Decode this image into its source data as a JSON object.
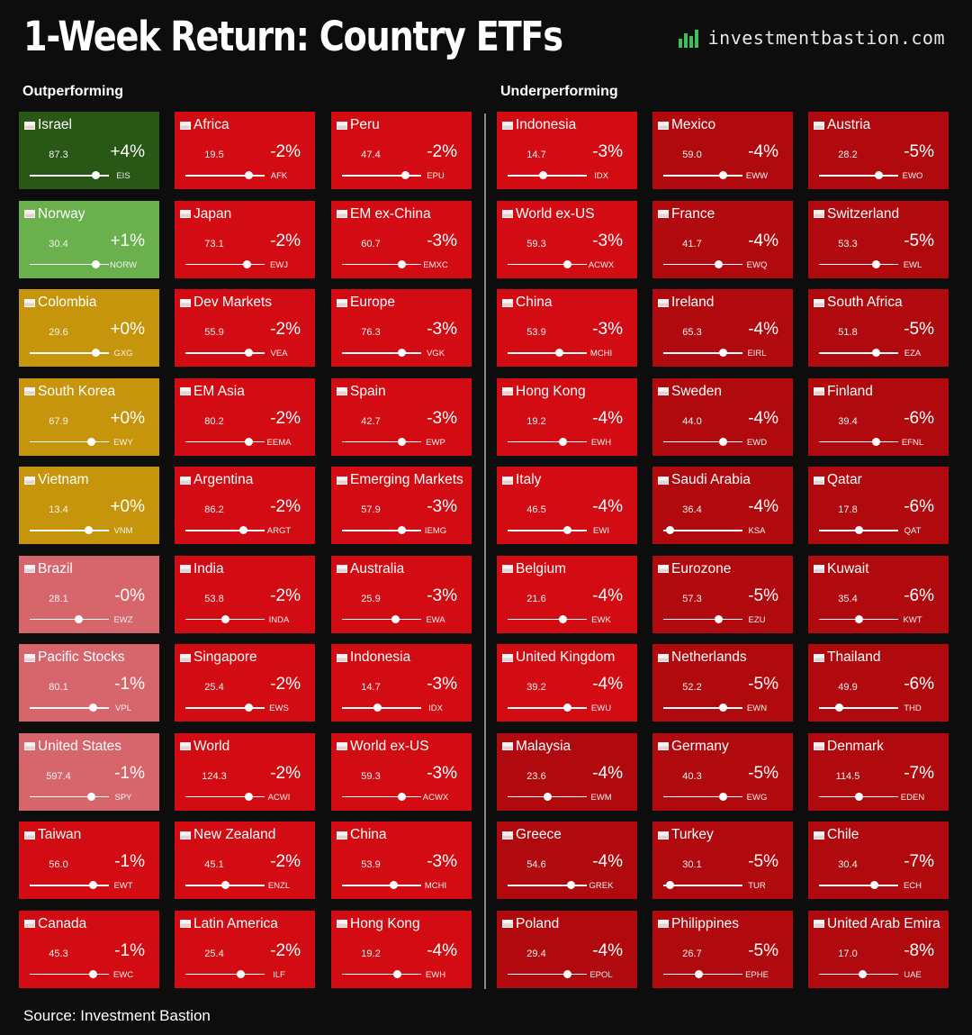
{
  "title": "1-Week Return: Country ETFs",
  "brand": {
    "logo_icon": "bar-chart-logo-icon",
    "text": "investmentbastion.com"
  },
  "labels": {
    "outperforming": "Outperforming",
    "underperforming": "Underperforming"
  },
  "source": "Source: Investment Bastion",
  "colors": {
    "dark_green": "#285716",
    "light_green": "#6ab04c",
    "gold": "#c6950c",
    "light_red": "#d7666c",
    "medium_red": "#d20c12",
    "dark_red": "#b00a0e"
  },
  "chart_data": {
    "type": "heatmap",
    "title": "1-Week Return: Country ETFs",
    "fields": [
      "name",
      "price",
      "return",
      "ticker",
      "slider_position"
    ],
    "columns": [
      {
        "group": "Outperforming",
        "tiles": [
          {
            "name": "Israel",
            "price": "87.3",
            "ret": "+4%",
            "ticker": "EIS",
            "pos": 0.83,
            "color": "#285716"
          },
          {
            "name": "Norway",
            "price": "30.4",
            "ret": "+1%",
            "ticker": "NORW",
            "pos": 0.83,
            "color": "#6ab04c"
          },
          {
            "name": "Colombia",
            "price": "29.6",
            "ret": "+0%",
            "ticker": "GXG",
            "pos": 0.83,
            "color": "#c6950c"
          },
          {
            "name": "South Korea",
            "price": "67.9",
            "ret": "+0%",
            "ticker": "EWY",
            "pos": 0.78,
            "color": "#c6950c"
          },
          {
            "name": "Vietnam",
            "price": "13.4",
            "ret": "+0%",
            "ticker": "VNM",
            "pos": 0.74,
            "color": "#c6950c"
          },
          {
            "name": "Brazil",
            "price": "28.1",
            "ret": "-0%",
            "ticker": "EWZ",
            "pos": 0.62,
            "color": "#d7666c"
          },
          {
            "name": "Pacific Stocks",
            "price": "80.1",
            "ret": "-1%",
            "ticker": "VPL",
            "pos": 0.8,
            "color": "#d7666c"
          },
          {
            "name": "United States",
            "price": "597.4",
            "ret": "-1%",
            "ticker": "SPY",
            "pos": 0.78,
            "color": "#d7666c"
          },
          {
            "name": "Taiwan",
            "price": "56.0",
            "ret": "-1%",
            "ticker": "EWT",
            "pos": 0.8,
            "color": "#d20c12"
          },
          {
            "name": "Canada",
            "price": "45.3",
            "ret": "-1%",
            "ticker": "EWC",
            "pos": 0.8,
            "color": "#d20c12"
          }
        ]
      },
      {
        "group": "Outperforming",
        "tiles": [
          {
            "name": "Africa",
            "price": "19.5",
            "ret": "-2%",
            "ticker": "AFK",
            "pos": 0.8,
            "color": "#d20c12"
          },
          {
            "name": "Japan",
            "price": "73.1",
            "ret": "-2%",
            "ticker": "EWJ",
            "pos": 0.78,
            "color": "#d20c12"
          },
          {
            "name": "Dev Markets",
            "price": "55.9",
            "ret": "-2%",
            "ticker": "VEA",
            "pos": 0.8,
            "color": "#d20c12"
          },
          {
            "name": "EM Asia",
            "price": "80.2",
            "ret": "-2%",
            "ticker": "EEMA",
            "pos": 0.8,
            "color": "#d20c12"
          },
          {
            "name": "Argentina",
            "price": "86.2",
            "ret": "-2%",
            "ticker": "ARGT",
            "pos": 0.73,
            "color": "#d20c12"
          },
          {
            "name": "India",
            "price": "53.8",
            "ret": "-2%",
            "ticker": "INDA",
            "pos": 0.51,
            "color": "#d20c12"
          },
          {
            "name": "Singapore",
            "price": "25.4",
            "ret": "-2%",
            "ticker": "EWS",
            "pos": 0.8,
            "color": "#d20c12"
          },
          {
            "name": "World",
            "price": "124.3",
            "ret": "-2%",
            "ticker": "ACWI",
            "pos": 0.8,
            "color": "#d20c12"
          },
          {
            "name": "New Zealand",
            "price": "45.1",
            "ret": "-2%",
            "ticker": "ENZL",
            "pos": 0.5,
            "color": "#d20c12"
          },
          {
            "name": "Latin America",
            "price": "25.4",
            "ret": "-2%",
            "ticker": "ILF",
            "pos": 0.7,
            "color": "#d20c12"
          }
        ]
      },
      {
        "group": "Outperforming",
        "tiles": [
          {
            "name": "Peru",
            "price": "47.4",
            "ret": "-2%",
            "ticker": "EPU",
            "pos": 0.8,
            "color": "#d20c12"
          },
          {
            "name": "EM ex-China",
            "price": "60.7",
            "ret": "-3%",
            "ticker": "EMXC",
            "pos": 0.75,
            "color": "#d20c12"
          },
          {
            "name": "Europe",
            "price": "76.3",
            "ret": "-3%",
            "ticker": "VGK",
            "pos": 0.75,
            "color": "#d20c12"
          },
          {
            "name": "Spain",
            "price": "42.7",
            "ret": "-3%",
            "ticker": "EWP",
            "pos": 0.75,
            "color": "#d20c12"
          },
          {
            "name": "Emerging Markets",
            "price": "57.9",
            "ret": "-3%",
            "ticker": "IEMG",
            "pos": 0.75,
            "color": "#d20c12"
          },
          {
            "name": "Australia",
            "price": "25.9",
            "ret": "-3%",
            "ticker": "EWA",
            "pos": 0.68,
            "color": "#d20c12"
          },
          {
            "name": "Indonesia",
            "price": "14.7",
            "ret": "-3%",
            "ticker": "IDX",
            "pos": 0.45,
            "color": "#d20c12"
          },
          {
            "name": "World ex-US",
            "price": "59.3",
            "ret": "-3%",
            "ticker": "ACWX",
            "pos": 0.75,
            "color": "#d20c12"
          },
          {
            "name": "China",
            "price": "53.9",
            "ret": "-3%",
            "ticker": "MCHI",
            "pos": 0.65,
            "color": "#d20c12"
          },
          {
            "name": "Hong Kong",
            "price": "19.2",
            "ret": "-4%",
            "ticker": "EWH",
            "pos": 0.7,
            "color": "#d20c12"
          }
        ]
      },
      {
        "group": "Underperforming",
        "tiles": [
          {
            "name": "Indonesia",
            "price": "14.7",
            "ret": "-3%",
            "ticker": "IDX",
            "pos": 0.45,
            "color": "#d20c12"
          },
          {
            "name": "World ex-US",
            "price": "59.3",
            "ret": "-3%",
            "ticker": "ACWX",
            "pos": 0.75,
            "color": "#d20c12"
          },
          {
            "name": "China",
            "price": "53.9",
            "ret": "-3%",
            "ticker": "MCHI",
            "pos": 0.65,
            "color": "#d20c12"
          },
          {
            "name": "Hong Kong",
            "price": "19.2",
            "ret": "-4%",
            "ticker": "EWH",
            "pos": 0.7,
            "color": "#d20c12"
          },
          {
            "name": "Italy",
            "price": "46.5",
            "ret": "-4%",
            "ticker": "EWI",
            "pos": 0.75,
            "color": "#d20c12"
          },
          {
            "name": "Belgium",
            "price": "21.6",
            "ret": "-4%",
            "ticker": "EWK",
            "pos": 0.7,
            "color": "#d20c12"
          },
          {
            "name": "United Kingdom",
            "price": "39.2",
            "ret": "-4%",
            "ticker": "EWU",
            "pos": 0.75,
            "color": "#d20c12"
          },
          {
            "name": "Malaysia",
            "price": "23.6",
            "ret": "-4%",
            "ticker": "EWM",
            "pos": 0.5,
            "color": "#b00a0e"
          },
          {
            "name": "Greece",
            "price": "54.6",
            "ret": "-4%",
            "ticker": "GREK",
            "pos": 0.8,
            "color": "#b00a0e"
          },
          {
            "name": "Poland",
            "price": "29.4",
            "ret": "-4%",
            "ticker": "EPOL",
            "pos": 0.75,
            "color": "#b00a0e"
          }
        ]
      },
      {
        "group": "Underperforming",
        "tiles": [
          {
            "name": "Mexico",
            "price": "59.0",
            "ret": "-4%",
            "ticker": "EWW",
            "pos": 0.75,
            "color": "#b00a0e"
          },
          {
            "name": "France",
            "price": "41.7",
            "ret": "-4%",
            "ticker": "EWQ",
            "pos": 0.7,
            "color": "#b00a0e"
          },
          {
            "name": "Ireland",
            "price": "65.3",
            "ret": "-4%",
            "ticker": "EIRL",
            "pos": 0.75,
            "color": "#b00a0e"
          },
          {
            "name": "Sweden",
            "price": "44.0",
            "ret": "-4%",
            "ticker": "EWD",
            "pos": 0.75,
            "color": "#b00a0e"
          },
          {
            "name": "Saudi Arabia",
            "price": "36.4",
            "ret": "-4%",
            "ticker": "KSA",
            "pos": 0.08,
            "color": "#b00a0e"
          },
          {
            "name": "Eurozone",
            "price": "57.3",
            "ret": "-5%",
            "ticker": "EZU",
            "pos": 0.7,
            "color": "#b00a0e"
          },
          {
            "name": "Netherlands",
            "price": "52.2",
            "ret": "-5%",
            "ticker": "EWN",
            "pos": 0.75,
            "color": "#b00a0e"
          },
          {
            "name": "Germany",
            "price": "40.3",
            "ret": "-5%",
            "ticker": "EWG",
            "pos": 0.75,
            "color": "#b00a0e"
          },
          {
            "name": "Turkey",
            "price": "30.1",
            "ret": "-5%",
            "ticker": "TUR",
            "pos": 0.08,
            "color": "#b00a0e"
          },
          {
            "name": "Philippines",
            "price": "26.7",
            "ret": "-5%",
            "ticker": "EPHE",
            "pos": 0.45,
            "color": "#b00a0e"
          }
        ]
      },
      {
        "group": "Underperforming",
        "tiles": [
          {
            "name": "Austria",
            "price": "28.2",
            "ret": "-5%",
            "ticker": "EWO",
            "pos": 0.75,
            "color": "#b00a0e"
          },
          {
            "name": "Switzerland",
            "price": "53.3",
            "ret": "-5%",
            "ticker": "EWL",
            "pos": 0.72,
            "color": "#b00a0e"
          },
          {
            "name": "South Africa",
            "price": "51.8",
            "ret": "-5%",
            "ticker": "EZA",
            "pos": 0.72,
            "color": "#b00a0e"
          },
          {
            "name": "Finland",
            "price": "39.4",
            "ret": "-6%",
            "ticker": "EFNL",
            "pos": 0.72,
            "color": "#b00a0e"
          },
          {
            "name": "Qatar",
            "price": "17.8",
            "ret": "-6%",
            "ticker": "QAT",
            "pos": 0.5,
            "color": "#b00a0e"
          },
          {
            "name": "Kuwait",
            "price": "35.4",
            "ret": "-6%",
            "ticker": "KWT",
            "pos": 0.5,
            "color": "#b00a0e"
          },
          {
            "name": "Thailand",
            "price": "49.9",
            "ret": "-6%",
            "ticker": "THD",
            "pos": 0.25,
            "color": "#b00a0e"
          },
          {
            "name": "Denmark",
            "price": "114.5",
            "ret": "-7%",
            "ticker": "EDEN",
            "pos": 0.5,
            "color": "#b00a0e"
          },
          {
            "name": "Chile",
            "price": "30.4",
            "ret": "-7%",
            "ticker": "ECH",
            "pos": 0.7,
            "color": "#b00a0e"
          },
          {
            "name": "United Arab Emira",
            "price": "17.0",
            "ret": "-8%",
            "ticker": "UAE",
            "pos": 0.55,
            "color": "#b00a0e"
          }
        ]
      }
    ]
  }
}
